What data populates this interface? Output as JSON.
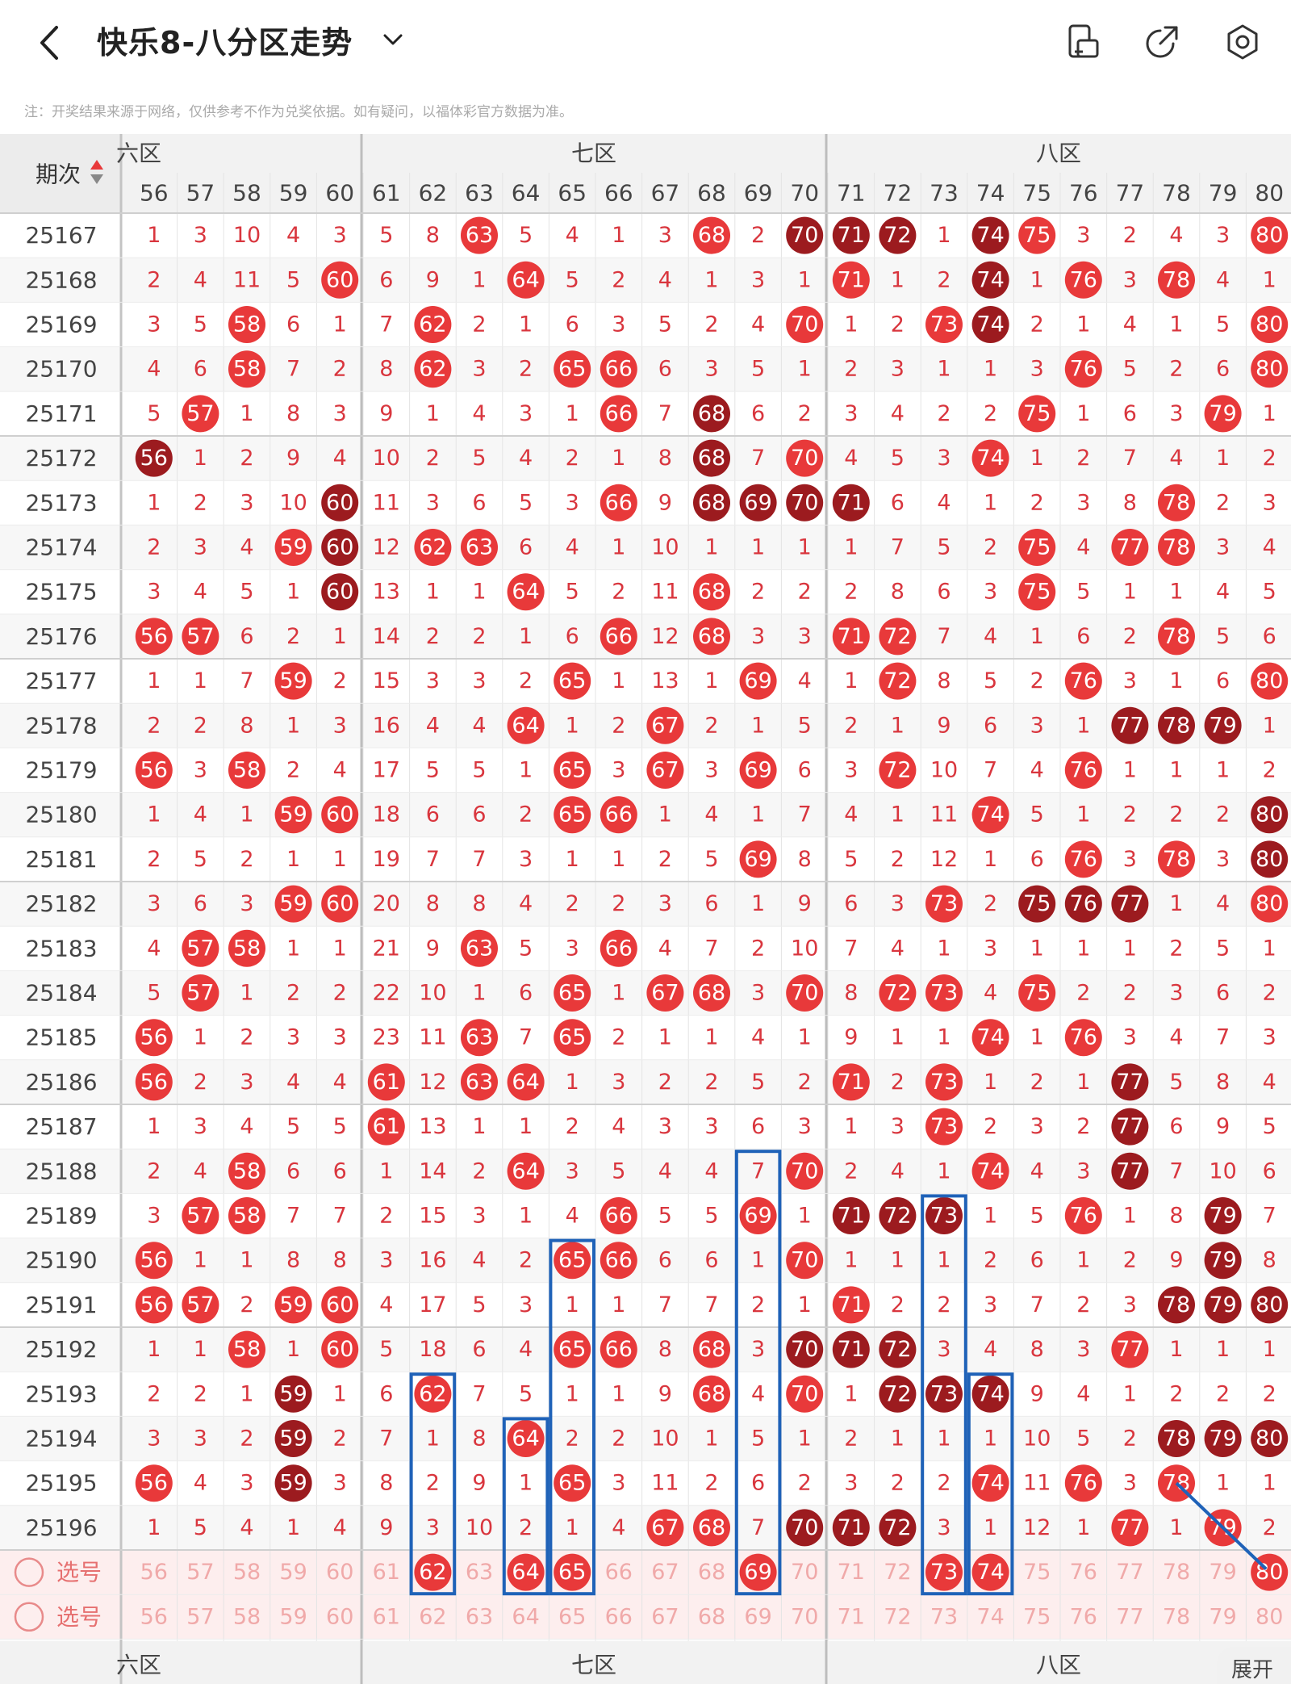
{
  "header": {
    "title": "快乐8-八分区走势",
    "icons": [
      "back-icon",
      "chevron-down-icon",
      "phone-layout-icon",
      "share-icon",
      "settings-icon"
    ]
  },
  "notice": "注：开奖结果来源于网络，仅供参考不作为兑奖依据。如有疑问，以福体彩官方数据为准。",
  "table": {
    "period_header": "期次",
    "zones": [
      {
        "label": "六区",
        "partial_label": "六区"
      },
      {
        "label": "七区"
      },
      {
        "label": "八区"
      }
    ],
    "columns": [
      56,
      57,
      58,
      59,
      60,
      61,
      62,
      63,
      64,
      65,
      66,
      67,
      68,
      69,
      70,
      71,
      72,
      73,
      74,
      75,
      76,
      77,
      78,
      79,
      80
    ],
    "select_label": "选号",
    "expand_label": "展开",
    "colors": {
      "red": "#e8393a",
      "dark_red": "#9c1b1f",
      "text": "#d9363e",
      "pink_band": "#fdeeee",
      "blue_box": "#1f62b8"
    },
    "rows": [
      {
        "period": "25167",
        "cells": [
          "1",
          "3",
          "10",
          "4",
          "3",
          "5",
          "8",
          "63",
          "5",
          "4",
          "1",
          "3",
          "68",
          "2",
          "70",
          "71",
          "72",
          "1",
          "74",
          "75",
          "3",
          "2",
          "4",
          "3",
          "80"
        ],
        "dark": [
          70,
          71,
          72,
          74
        ]
      },
      {
        "period": "25168",
        "cells": [
          "2",
          "4",
          "11",
          "5",
          "60",
          "6",
          "9",
          "1",
          "64",
          "5",
          "2",
          "4",
          "1",
          "3",
          "1",
          "71",
          "1",
          "2",
          "74",
          "1",
          "76",
          "3",
          "78",
          "4",
          "1"
        ],
        "dark": [
          74
        ]
      },
      {
        "period": "25169",
        "cells": [
          "3",
          "5",
          "58",
          "6",
          "1",
          "7",
          "62",
          "2",
          "1",
          "6",
          "3",
          "5",
          "2",
          "4",
          "70",
          "1",
          "2",
          "73",
          "74",
          "2",
          "1",
          "4",
          "1",
          "5",
          "80"
        ],
        "dark": [
          74
        ]
      },
      {
        "period": "25170",
        "cells": [
          "4",
          "6",
          "58",
          "7",
          "2",
          "8",
          "62",
          "3",
          "2",
          "65",
          "66",
          "6",
          "3",
          "5",
          "1",
          "2",
          "3",
          "1",
          "1",
          "3",
          "76",
          "5",
          "2",
          "6",
          "80"
        ],
        "dark": []
      },
      {
        "period": "25171",
        "cells": [
          "5",
          "57",
          "1",
          "8",
          "3",
          "9",
          "1",
          "4",
          "3",
          "1",
          "66",
          "7",
          "68",
          "6",
          "2",
          "3",
          "4",
          "2",
          "2",
          "75",
          "1",
          "6",
          "3",
          "79",
          "1"
        ],
        "dark": [
          68
        ]
      },
      {
        "period": "25172",
        "cells": [
          "56",
          "1",
          "2",
          "9",
          "4",
          "10",
          "2",
          "5",
          "4",
          "2",
          "1",
          "8",
          "68",
          "7",
          "70",
          "4",
          "5",
          "3",
          "74",
          "1",
          "2",
          "7",
          "4",
          "1",
          "2"
        ],
        "dark": [
          56,
          68
        ]
      },
      {
        "period": "25173",
        "cells": [
          "1",
          "2",
          "3",
          "10",
          "60",
          "11",
          "3",
          "6",
          "5",
          "3",
          "66",
          "9",
          "68",
          "69",
          "70",
          "71",
          "6",
          "4",
          "1",
          "2",
          "3",
          "8",
          "78",
          "2",
          "3"
        ],
        "dark": [
          60,
          68,
          69,
          70,
          71
        ]
      },
      {
        "period": "25174",
        "cells": [
          "2",
          "3",
          "4",
          "59",
          "60",
          "12",
          "62",
          "63",
          "6",
          "4",
          "1",
          "10",
          "1",
          "1",
          "1",
          "1",
          "7",
          "5",
          "2",
          "75",
          "4",
          "77",
          "78",
          "3",
          "4"
        ],
        "dark": [
          60
        ]
      },
      {
        "period": "25175",
        "cells": [
          "3",
          "4",
          "5",
          "1",
          "60",
          "13",
          "1",
          "1",
          "64",
          "5",
          "2",
          "11",
          "68",
          "2",
          "2",
          "2",
          "8",
          "6",
          "3",
          "75",
          "5",
          "1",
          "1",
          "4",
          "5"
        ],
        "dark": [
          60
        ]
      },
      {
        "period": "25176",
        "cells": [
          "56",
          "57",
          "6",
          "2",
          "1",
          "14",
          "2",
          "2",
          "1",
          "6",
          "66",
          "12",
          "68",
          "3",
          "3",
          "71",
          "72",
          "7",
          "4",
          "1",
          "6",
          "2",
          "78",
          "5",
          "6"
        ],
        "dark": []
      },
      {
        "period": "25177",
        "cells": [
          "1",
          "1",
          "7",
          "59",
          "2",
          "15",
          "3",
          "3",
          "2",
          "65",
          "1",
          "13",
          "1",
          "69",
          "4",
          "1",
          "72",
          "8",
          "5",
          "2",
          "76",
          "3",
          "1",
          "6",
          "80"
        ],
        "dark": []
      },
      {
        "period": "25178",
        "cells": [
          "2",
          "2",
          "8",
          "1",
          "3",
          "16",
          "4",
          "4",
          "64",
          "1",
          "2",
          "67",
          "2",
          "1",
          "5",
          "2",
          "1",
          "9",
          "6",
          "3",
          "1",
          "77",
          "78",
          "79",
          "1"
        ],
        "dark": [
          77,
          78,
          79
        ]
      },
      {
        "period": "25179",
        "cells": [
          "56",
          "3",
          "58",
          "2",
          "4",
          "17",
          "5",
          "5",
          "1",
          "65",
          "3",
          "67",
          "3",
          "69",
          "6",
          "3",
          "72",
          "10",
          "7",
          "4",
          "76",
          "1",
          "1",
          "1",
          "2"
        ],
        "dark": []
      },
      {
        "period": "25180",
        "cells": [
          "1",
          "4",
          "1",
          "59",
          "60",
          "18",
          "6",
          "6",
          "2",
          "65",
          "66",
          "1",
          "4",
          "1",
          "7",
          "4",
          "1",
          "11",
          "74",
          "5",
          "1",
          "2",
          "2",
          "2",
          "80"
        ],
        "dark": [
          80
        ]
      },
      {
        "period": "25181",
        "cells": [
          "2",
          "5",
          "2",
          "1",
          "1",
          "19",
          "7",
          "7",
          "3",
          "1",
          "1",
          "2",
          "5",
          "69",
          "8",
          "5",
          "2",
          "12",
          "1",
          "6",
          "76",
          "3",
          "78",
          "3",
          "80"
        ],
        "dark": [
          80
        ]
      },
      {
        "period": "25182",
        "cells": [
          "3",
          "6",
          "3",
          "59",
          "60",
          "20",
          "8",
          "8",
          "4",
          "2",
          "2",
          "3",
          "6",
          "1",
          "9",
          "6",
          "3",
          "73",
          "2",
          "75",
          "76",
          "77",
          "1",
          "4",
          "80"
        ],
        "dark": [
          75,
          76,
          77
        ]
      },
      {
        "period": "25183",
        "cells": [
          "4",
          "57",
          "58",
          "1",
          "1",
          "21",
          "9",
          "63",
          "5",
          "3",
          "66",
          "4",
          "7",
          "2",
          "10",
          "7",
          "4",
          "1",
          "3",
          "1",
          "1",
          "1",
          "2",
          "5",
          "1"
        ],
        "dark": []
      },
      {
        "period": "25184",
        "cells": [
          "5",
          "57",
          "1",
          "2",
          "2",
          "22",
          "10",
          "1",
          "6",
          "65",
          "1",
          "67",
          "68",
          "3",
          "70",
          "8",
          "72",
          "73",
          "4",
          "75",
          "2",
          "2",
          "3",
          "6",
          "2"
        ],
        "dark": []
      },
      {
        "period": "25185",
        "cells": [
          "56",
          "1",
          "2",
          "3",
          "3",
          "23",
          "11",
          "63",
          "7",
          "65",
          "2",
          "1",
          "1",
          "4",
          "1",
          "9",
          "1",
          "1",
          "74",
          "1",
          "76",
          "3",
          "4",
          "7",
          "3"
        ],
        "dark": []
      },
      {
        "period": "25186",
        "cells": [
          "56",
          "2",
          "3",
          "4",
          "4",
          "61",
          "12",
          "63",
          "64",
          "1",
          "3",
          "2",
          "2",
          "5",
          "2",
          "71",
          "2",
          "73",
          "1",
          "2",
          "1",
          "77",
          "5",
          "8",
          "4"
        ],
        "dark": [
          77
        ]
      },
      {
        "period": "25187",
        "cells": [
          "1",
          "3",
          "4",
          "5",
          "5",
          "61",
          "13",
          "1",
          "1",
          "2",
          "4",
          "3",
          "3",
          "6",
          "3",
          "1",
          "3",
          "73",
          "2",
          "3",
          "2",
          "77",
          "6",
          "9",
          "5"
        ],
        "dark": [
          77
        ]
      },
      {
        "period": "25188",
        "cells": [
          "2",
          "4",
          "58",
          "6",
          "6",
          "1",
          "14",
          "2",
          "64",
          "3",
          "5",
          "4",
          "4",
          "7",
          "70",
          "2",
          "4",
          "1",
          "74",
          "4",
          "3",
          "77",
          "7",
          "10",
          "6"
        ],
        "dark": [
          77
        ]
      },
      {
        "period": "25189",
        "cells": [
          "3",
          "57",
          "58",
          "7",
          "7",
          "2",
          "15",
          "3",
          "1",
          "4",
          "66",
          "5",
          "5",
          "69",
          "1",
          "71",
          "72",
          "73",
          "1",
          "5",
          "76",
          "1",
          "8",
          "79",
          "7"
        ],
        "dark": [
          71,
          72,
          73,
          79
        ]
      },
      {
        "period": "25190",
        "cells": [
          "56",
          "1",
          "1",
          "8",
          "8",
          "3",
          "16",
          "4",
          "2",
          "65",
          "66",
          "6",
          "6",
          "1",
          "70",
          "1",
          "1",
          "1",
          "2",
          "6",
          "1",
          "2",
          "9",
          "79",
          "8"
        ],
        "dark": [
          79
        ]
      },
      {
        "period": "25191",
        "cells": [
          "56",
          "57",
          "2",
          "59",
          "60",
          "4",
          "17",
          "5",
          "3",
          "1",
          "1",
          "7",
          "7",
          "2",
          "1",
          "71",
          "2",
          "2",
          "3",
          "7",
          "2",
          "3",
          "78",
          "79",
          "80"
        ],
        "dark": [
          78,
          79,
          80
        ]
      },
      {
        "period": "25192",
        "cells": [
          "1",
          "1",
          "58",
          "1",
          "60",
          "5",
          "18",
          "6",
          "4",
          "65",
          "66",
          "8",
          "68",
          "3",
          "70",
          "71",
          "72",
          "3",
          "4",
          "8",
          "3",
          "77",
          "1",
          "1",
          "1"
        ],
        "dark": [
          70,
          71,
          72
        ]
      },
      {
        "period": "25193",
        "cells": [
          "2",
          "2",
          "1",
          "59",
          "1",
          "6",
          "62",
          "7",
          "5",
          "1",
          "1",
          "9",
          "68",
          "4",
          "70",
          "1",
          "72",
          "73",
          "74",
          "9",
          "4",
          "1",
          "2",
          "2",
          "2"
        ],
        "dark": [
          59,
          72,
          73,
          74
        ]
      },
      {
        "period": "25194",
        "cells": [
          "3",
          "3",
          "2",
          "59",
          "2",
          "7",
          "1",
          "8",
          "64",
          "2",
          "2",
          "10",
          "1",
          "5",
          "1",
          "2",
          "1",
          "1",
          "1",
          "10",
          "5",
          "2",
          "78",
          "79",
          "80"
        ],
        "dark": [
          59,
          78,
          79,
          80
        ]
      },
      {
        "period": "25195",
        "cells": [
          "56",
          "4",
          "3",
          "59",
          "3",
          "8",
          "2",
          "9",
          "1",
          "65",
          "3",
          "11",
          "2",
          "6",
          "2",
          "3",
          "2",
          "2",
          "74",
          "11",
          "76",
          "3",
          "78",
          "1",
          "1"
        ],
        "dark": [
          59
        ]
      },
      {
        "period": "25196",
        "cells": [
          "1",
          "5",
          "4",
          "1",
          "4",
          "9",
          "3",
          "10",
          "2",
          "1",
          "4",
          "67",
          "68",
          "7",
          "70",
          "71",
          "72",
          "3",
          "1",
          "12",
          "1",
          "77",
          "1",
          "79",
          "2"
        ],
        "dark": [
          70,
          71,
          72
        ]
      }
    ],
    "selection": [
      62,
      64,
      65,
      69,
      73,
      74,
      80
    ]
  }
}
